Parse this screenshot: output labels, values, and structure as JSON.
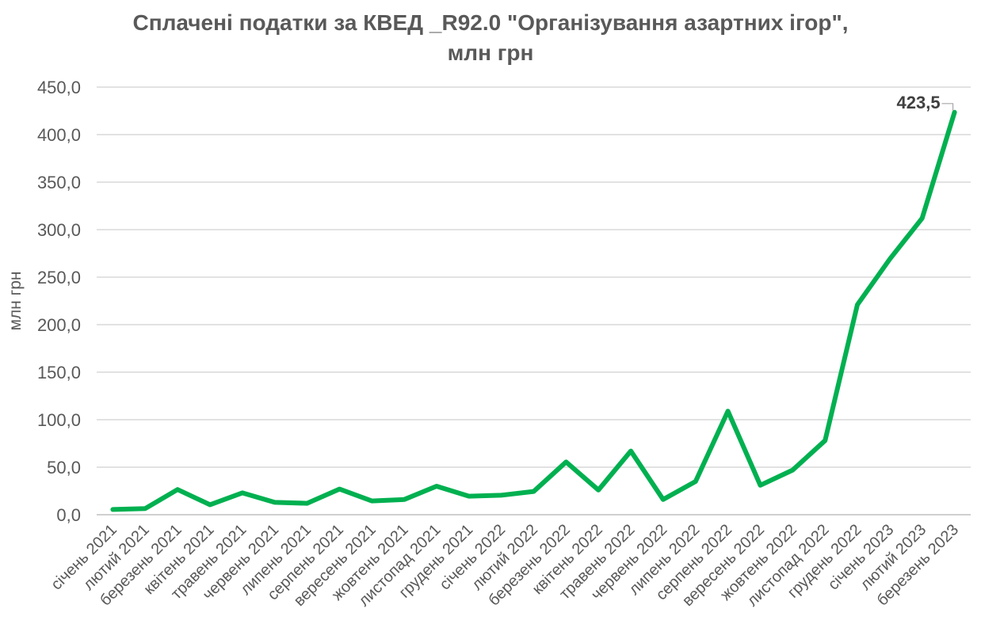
{
  "chart_data": {
    "type": "line",
    "title_line1": "Сплачені податки за КВЕД _R92.0 \"Організування азартних ігор\",",
    "title_line2": "млн грн",
    "xlabel": "",
    "ylabel": "млн грн",
    "ylim": [
      0,
      450
    ],
    "yticks": [
      "0,0",
      "50,0",
      "100,0",
      "150,0",
      "200,0",
      "250,0",
      "300,0",
      "350,0",
      "400,0",
      "450,0"
    ],
    "grid": true,
    "legend": "none",
    "line_color": "#00B050",
    "categories": [
      "січень 2021",
      "лютий 2021",
      "березень 2021",
      "квітень 2021",
      "травень 2021",
      "червень 2021",
      "липень 2021",
      "серпень 2021",
      "вересень 2021",
      "жовтень 2021",
      "листопад 2021",
      "грудень 2021",
      "січень 2022",
      "лютий 2022",
      "березень 2022",
      "квітень 2022",
      "травень 2022",
      "червень 2022",
      "липень 2022",
      "серпень 2022",
      "вересень 2022",
      "жовтень 2022",
      "листопад 2022",
      "грудень 2022",
      "січень 2023",
      "лютий 2023",
      "березень 2023"
    ],
    "series": [
      {
        "values": [
          5.5,
          6.5,
          26.5,
          10.5,
          23.0,
          13.0,
          12.0,
          27.0,
          14.5,
          16.0,
          30.0,
          19.5,
          20.5,
          24.5,
          55.5,
          26.0,
          67.0,
          16.0,
          35.0,
          109.0,
          31.0,
          47.0,
          78.0,
          221.0,
          269.0,
          312.0,
          423.5
        ]
      }
    ],
    "data_labels": [
      {
        "index": 26,
        "text": "423,5"
      }
    ]
  }
}
